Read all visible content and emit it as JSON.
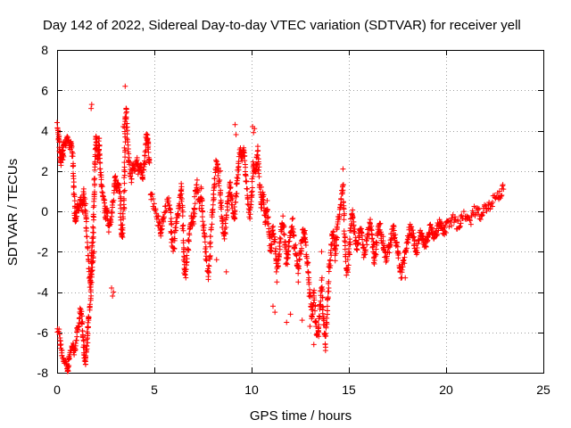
{
  "chart_data": {
    "type": "scatter",
    "title": "Day 142 of 2022, Sidereal Day-to-day VTEC variation (SDTVAR) for receiver yell",
    "xlabel": "GPS time / hours",
    "ylabel": "SDTVAR / TECUs",
    "xlim": [
      0,
      25
    ],
    "ylim": [
      -8,
      8
    ],
    "xticks": [
      0,
      5,
      10,
      15,
      20,
      25
    ],
    "yticks": [
      -8,
      -6,
      -4,
      -2,
      0,
      2,
      4,
      6,
      8
    ],
    "grid": true,
    "marker": "+",
    "series": [
      {
        "name": "SDTVAR",
        "color": "#ff0000",
        "trace": [
          [
            0.0,
            4.2
          ],
          [
            0.05,
            3.9
          ],
          [
            0.1,
            3.4
          ],
          [
            0.15,
            2.8
          ],
          [
            0.2,
            2.4
          ],
          [
            0.25,
            3.1
          ],
          [
            0.3,
            2.6
          ],
          [
            0.35,
            3.5
          ],
          [
            0.45,
            3.3
          ],
          [
            0.55,
            3.6
          ],
          [
            0.65,
            3.2
          ],
          [
            0.72,
            3.4
          ],
          [
            0.8,
            2.6
          ],
          [
            0.85,
            1.5
          ],
          [
            0.9,
            0.2
          ],
          [
            0.95,
            -0.5
          ],
          [
            1.0,
            -0.2
          ],
          [
            1.05,
            0.4
          ],
          [
            1.1,
            0.0
          ],
          [
            1.2,
            0.6
          ],
          [
            1.3,
            0.1
          ],
          [
            1.35,
            1.0
          ],
          [
            1.45,
            0.3
          ],
          [
            1.5,
            -0.7
          ],
          [
            1.6,
            -2.5
          ],
          [
            1.7,
            -3.6
          ],
          [
            1.75,
            -3.0
          ],
          [
            1.8,
            -1.8
          ],
          [
            1.85,
            -1.1
          ],
          [
            1.9,
            0.8
          ],
          [
            1.95,
            2.5
          ],
          [
            2.0,
            3.8
          ],
          [
            2.05,
            3.2
          ],
          [
            2.1,
            2.5
          ],
          [
            2.15,
            3.6
          ],
          [
            2.2,
            2.2
          ],
          [
            2.3,
            1.2
          ],
          [
            2.4,
            0.6
          ],
          [
            2.5,
            -0.3
          ],
          [
            2.55,
            0.2
          ],
          [
            2.65,
            -0.9
          ],
          [
            2.75,
            -0.5
          ],
          [
            2.85,
            0.3
          ],
          [
            3.0,
            1.8
          ],
          [
            3.05,
            1.0
          ],
          [
            3.15,
            1.4
          ],
          [
            3.25,
            0.8
          ],
          [
            3.3,
            -0.8
          ],
          [
            3.35,
            -1.3
          ],
          [
            3.45,
            0.6
          ],
          [
            3.5,
            4.5
          ],
          [
            3.55,
            5.1
          ],
          [
            3.6,
            3.8
          ],
          [
            3.7,
            2.5
          ],
          [
            3.8,
            1.6
          ],
          [
            3.9,
            2.3
          ],
          [
            4.0,
            2.1
          ],
          [
            4.1,
            2.6
          ],
          [
            4.2,
            1.9
          ],
          [
            4.3,
            2.3
          ],
          [
            4.4,
            1.6
          ],
          [
            4.5,
            2.4
          ],
          [
            4.6,
            3.8
          ],
          [
            4.65,
            3.5
          ],
          [
            4.7,
            3.0
          ],
          [
            4.75,
            2.4
          ]
        ],
        "trace_low": [
          [
            0.0,
            -5.9
          ],
          [
            0.1,
            -6.0
          ],
          [
            0.2,
            -6.8
          ],
          [
            0.3,
            -7.3
          ],
          [
            0.4,
            -7.5
          ],
          [
            0.5,
            -7.6
          ],
          [
            0.55,
            -7.9
          ],
          [
            0.6,
            -7.3
          ],
          [
            0.7,
            -7.0
          ],
          [
            0.8,
            -6.6
          ],
          [
            0.9,
            -7.0
          ],
          [
            1.0,
            -6.2
          ],
          [
            1.1,
            -5.6
          ],
          [
            1.2,
            -4.8
          ],
          [
            1.3,
            -5.6
          ],
          [
            1.35,
            -6.4
          ],
          [
            1.4,
            -7.2
          ],
          [
            1.45,
            -7.5
          ],
          [
            1.5,
            -7.0
          ],
          [
            1.55,
            -6.4
          ],
          [
            1.6,
            -5.5
          ],
          [
            1.7,
            -4.6
          ],
          [
            1.8,
            -2.9
          ],
          [
            1.9,
            -2.0
          ]
        ],
        "trace2": [
          [
            4.8,
            1.0
          ],
          [
            5.0,
            0.2
          ],
          [
            5.2,
            -0.4
          ],
          [
            5.3,
            -1.1
          ],
          [
            5.4,
            -0.6
          ],
          [
            5.5,
            -0.2
          ],
          [
            5.7,
            0.6
          ],
          [
            5.85,
            -0.4
          ],
          [
            5.9,
            -1.4
          ],
          [
            6.0,
            -1.9
          ],
          [
            6.1,
            -0.7
          ],
          [
            6.2,
            -0.3
          ],
          [
            6.3,
            0.4
          ],
          [
            6.4,
            1.2
          ],
          [
            6.5,
            -1.9
          ],
          [
            6.55,
            -2.8
          ],
          [
            6.6,
            -3.1
          ],
          [
            6.7,
            -2.3
          ],
          [
            6.8,
            -1.1
          ],
          [
            6.9,
            -0.3
          ],
          [
            7.0,
            -0.7
          ],
          [
            7.1,
            0.8
          ],
          [
            7.2,
            1.4
          ],
          [
            7.3,
            0.3
          ],
          [
            7.4,
            0.9
          ],
          [
            7.5,
            -0.6
          ],
          [
            7.6,
            -1.5
          ],
          [
            7.7,
            -2.6
          ],
          [
            7.8,
            -3.2
          ],
          [
            7.9,
            -1.2
          ],
          [
            8.0,
            0.2
          ],
          [
            8.1,
            1.6
          ],
          [
            8.2,
            2.6
          ],
          [
            8.3,
            1.8
          ],
          [
            8.4,
            0.9
          ],
          [
            8.5,
            -0.6
          ],
          [
            8.6,
            -1.4
          ],
          [
            8.7,
            -0.3
          ],
          [
            8.8,
            0.6
          ],
          [
            8.9,
            1.3
          ],
          [
            9.0,
            0.4
          ],
          [
            9.1,
            -0.4
          ],
          [
            9.2,
            0.8
          ],
          [
            9.3,
            2.0
          ],
          [
            9.4,
            3.0
          ],
          [
            9.5,
            2.6
          ],
          [
            9.6,
            3.2
          ],
          [
            9.7,
            1.8
          ],
          [
            9.8,
            0.6
          ],
          [
            9.9,
            -0.2
          ],
          [
            10.0,
            0.6
          ],
          [
            10.1,
            2.4
          ],
          [
            10.2,
            1.7
          ],
          [
            10.3,
            3.1
          ],
          [
            10.4,
            1.4
          ],
          [
            10.5,
            0.2
          ],
          [
            10.6,
            0.9
          ],
          [
            10.7,
            -0.5
          ],
          [
            10.8,
            0.3
          ],
          [
            10.9,
            -1.2
          ],
          [
            11.0,
            -2.0
          ],
          [
            11.1,
            -0.8
          ],
          [
            11.2,
            -1.5
          ],
          [
            11.3,
            -2.9
          ],
          [
            11.4,
            -2.2
          ],
          [
            11.5,
            -1.1
          ],
          [
            11.6,
            -0.4
          ],
          [
            11.7,
            -1.4
          ],
          [
            11.8,
            -2.6
          ],
          [
            11.9,
            -1.8
          ],
          [
            12.0,
            -0.9
          ],
          [
            12.1,
            -0.6
          ],
          [
            12.2,
            -1.6
          ],
          [
            12.3,
            -2.2
          ],
          [
            12.4,
            -3.0
          ],
          [
            12.5,
            -2.1
          ],
          [
            12.6,
            -1.3
          ],
          [
            12.7,
            -0.8
          ],
          [
            12.8,
            -1.9
          ],
          [
            12.9,
            -2.8
          ],
          [
            13.0,
            -4.2
          ],
          [
            13.1,
            -5.2
          ],
          [
            13.2,
            -4.1
          ],
          [
            13.3,
            -5.6
          ],
          [
            13.4,
            -6.3
          ],
          [
            13.5,
            -4.9
          ],
          [
            13.6,
            -3.5
          ],
          [
            13.7,
            -5.4
          ],
          [
            13.8,
            -6.6
          ],
          [
            13.9,
            -4.6
          ],
          [
            14.0,
            -2.8
          ],
          [
            14.1,
            -1.6
          ],
          [
            14.2,
            -1.1
          ],
          [
            14.3,
            -2.2
          ],
          [
            14.4,
            -0.8
          ],
          [
            14.5,
            -0.3
          ],
          [
            14.6,
            0.5
          ],
          [
            14.7,
            1.2
          ],
          [
            14.8,
            -1.4
          ],
          [
            14.9,
            -3.1
          ],
          [
            15.0,
            -2.3
          ],
          [
            15.1,
            -0.6
          ],
          [
            15.2,
            -0.2
          ],
          [
            15.3,
            -1.0
          ],
          [
            15.4,
            -1.9
          ],
          [
            15.5,
            -1.4
          ],
          [
            15.6,
            -0.8
          ],
          [
            15.7,
            -1.5
          ],
          [
            15.8,
            -2.2
          ],
          [
            15.9,
            -1.6
          ],
          [
            16.0,
            -1.0
          ],
          [
            16.1,
            -0.6
          ],
          [
            16.2,
            -1.3
          ],
          [
            16.3,
            -2.5
          ],
          [
            16.4,
            -1.9
          ],
          [
            16.5,
            -1.1
          ],
          [
            16.6,
            -0.7
          ],
          [
            16.7,
            -1.3
          ],
          [
            16.8,
            -1.8
          ],
          [
            16.9,
            -2.3
          ],
          [
            17.0,
            -2.0
          ],
          [
            17.1,
            -1.7
          ],
          [
            17.2,
            -1.2
          ],
          [
            17.3,
            -0.9
          ],
          [
            17.4,
            -1.4
          ],
          [
            17.5,
            -2.0
          ],
          [
            17.6,
            -2.7
          ],
          [
            17.7,
            -3.1
          ],
          [
            17.8,
            -2.6
          ],
          [
            17.9,
            -2.0
          ],
          [
            18.0,
            -1.6
          ],
          [
            18.1,
            -1.1
          ],
          [
            18.2,
            -0.8
          ],
          [
            18.3,
            -1.2
          ],
          [
            18.4,
            -1.7
          ],
          [
            18.5,
            -2.0
          ],
          [
            18.6,
            -1.5
          ],
          [
            18.7,
            -1.0
          ],
          [
            18.8,
            -1.3
          ],
          [
            18.9,
            -1.8
          ],
          [
            19.0,
            -1.4
          ],
          [
            19.1,
            -1.0
          ],
          [
            19.2,
            -0.7
          ],
          [
            19.3,
            -1.0
          ],
          [
            19.4,
            -1.4
          ],
          [
            19.5,
            -1.1
          ],
          [
            19.6,
            -0.8
          ],
          [
            19.7,
            -0.6
          ],
          [
            19.8,
            -0.9
          ],
          [
            19.9,
            -1.1
          ],
          [
            20.0,
            -0.8
          ],
          [
            20.2,
            -0.6
          ],
          [
            20.4,
            -0.4
          ],
          [
            20.6,
            -0.7
          ],
          [
            20.8,
            -0.3
          ],
          [
            21.0,
            -0.2
          ],
          [
            21.2,
            -0.5
          ],
          [
            21.4,
            -0.1
          ],
          [
            21.6,
            0.1
          ],
          [
            21.8,
            -0.2
          ],
          [
            22.0,
            0.3
          ],
          [
            22.2,
            0.2
          ],
          [
            22.4,
            0.5
          ],
          [
            22.6,
            0.6
          ],
          [
            22.8,
            0.9
          ],
          [
            22.95,
            1.1
          ]
        ],
        "scatter": [
          [
            0.0,
            4.4
          ],
          [
            1.75,
            5.1
          ],
          [
            1.78,
            5.3
          ],
          [
            2.8,
            -3.8
          ],
          [
            2.85,
            -4.2
          ],
          [
            2.9,
            -4.0
          ],
          [
            3.5,
            6.2
          ],
          [
            3.55,
            5.1
          ],
          [
            3.4,
            4.2
          ],
          [
            4.5,
            2.5
          ],
          [
            5.1,
            -0.1
          ],
          [
            5.3,
            -0.7
          ],
          [
            7.4,
            1.2
          ],
          [
            8.2,
            -2.4
          ],
          [
            8.4,
            2.0
          ],
          [
            8.7,
            -3.0
          ],
          [
            9.15,
            4.3
          ],
          [
            9.2,
            3.8
          ],
          [
            10.05,
            4.2
          ],
          [
            10.1,
            3.9
          ],
          [
            10.15,
            4.1
          ],
          [
            10.3,
            2.3
          ],
          [
            10.5,
            1.2
          ],
          [
            11.3,
            -3.5
          ],
          [
            12.25,
            -2.1
          ],
          [
            12.4,
            -3.5
          ],
          [
            12.6,
            -5.4
          ],
          [
            13.0,
            -5.7
          ],
          [
            13.2,
            -6.6
          ],
          [
            13.45,
            -6.2
          ],
          [
            13.8,
            -6.9
          ],
          [
            14.7,
            2.1
          ],
          [
            14.2,
            -1.2
          ],
          [
            11.8,
            -5.5
          ],
          [
            12.0,
            -5.1
          ],
          [
            13.6,
            -2.0
          ],
          [
            12.75,
            -1.3
          ],
          [
            11.1,
            -4.7
          ],
          [
            11.2,
            -5.0
          ],
          [
            14.55,
            0.2
          ],
          [
            16.3,
            -1.6
          ],
          [
            17.9,
            -3.3
          ]
        ]
      }
    ]
  }
}
